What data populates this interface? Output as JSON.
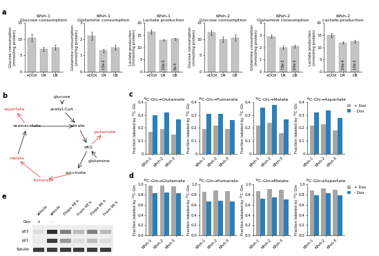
{
  "panel_labels": [
    "a",
    "b",
    "c",
    "d",
    "e"
  ],
  "chart_data": [
    {
      "type": "bar",
      "title": "KPsh-1\nGlucose consumption",
      "ylabel": "Glucose consumption\n(mmol/mg protein)",
      "categories": [
        "+DOX",
        "D4",
        "D8"
      ],
      "values": [
        10.5,
        7.0,
        7.5
      ],
      "errors": [
        1.2,
        0.6,
        0.7
      ],
      "annotations": [
        null,
        null,
        null
      ],
      "color": "#c4c4c4",
      "ylim": [
        0,
        15
      ],
      "yticks": [
        0,
        5,
        10,
        15
      ]
    },
    {
      "type": "bar",
      "title": "KPsh-1\nGlutamine consumption",
      "ylabel": "Glutamine consumption\n(mmol/mg protein)",
      "categories": [
        "+DOX",
        "D4",
        "D8"
      ],
      "values": [
        2.2,
        1.3,
        1.5
      ],
      "errors": [
        0.25,
        0.1,
        0.15
      ],
      "annotations": [
        null,
        "1.5e-2",
        null
      ],
      "color": "#c4c4c4",
      "ylim": [
        0,
        3
      ],
      "yticks": [
        0,
        1,
        2,
        3
      ]
    },
    {
      "type": "bar",
      "title": "KPsh-1\nLactate production",
      "ylabel": "Lactate production\n(mmol/mg protein)",
      "categories": [
        "+DOX",
        "D4",
        "D8"
      ],
      "values": [
        16.5,
        13.0,
        13.5
      ],
      "errors": [
        0.8,
        0.4,
        0.5
      ],
      "annotations": [
        null,
        "2.0e-5",
        "6e-4"
      ],
      "color": "#c4c4c4",
      "ylim": [
        0,
        20
      ],
      "yticks": [
        0,
        5,
        10,
        15,
        20
      ]
    },
    {
      "type": "bar",
      "title": "KPsh-2\nGlucose consumption",
      "ylabel": "Glucose consumption\n(mmol/mg protein)",
      "categories": [
        "+DOX",
        "D4",
        "D8"
      ],
      "values": [
        12.0,
        10.0,
        10.5
      ],
      "errors": [
        0.8,
        0.9,
        1.0
      ],
      "annotations": [
        null,
        null,
        null
      ],
      "color": "#c4c4c4",
      "ylim": [
        0,
        15
      ],
      "yticks": [
        0,
        5,
        10,
        15
      ]
    },
    {
      "type": "bar",
      "title": "KPsh-2\nGlutamine consumption",
      "ylabel": "Glutamine consumption\n(mmol/mg protein)",
      "categories": [
        "+DOX",
        "D4",
        "D8"
      ],
      "values": [
        2.9,
        2.0,
        2.1
      ],
      "errors": [
        0.15,
        0.15,
        0.1
      ],
      "annotations": [
        null,
        "7.8e-5",
        "8.4e-5"
      ],
      "color": "#c4c4c4",
      "ylim": [
        0,
        4
      ],
      "yticks": [
        0,
        1,
        2,
        3,
        4
      ]
    },
    {
      "type": "bar",
      "title": "KPsh-2\nLactate production",
      "ylabel": "Lactate production\n(mmol/mg protein)",
      "categories": [
        "+DOX",
        "D4",
        "D8"
      ],
      "values": [
        15.0,
        12.0,
        12.5
      ],
      "errors": [
        0.9,
        0.5,
        0.5
      ],
      "annotations": [
        null,
        "3.4e-4",
        "1.0e-2"
      ],
      "color": "#c4c4c4",
      "ylim": [
        0,
        20
      ],
      "yticks": [
        0,
        5,
        10,
        15,
        20
      ]
    },
    {
      "type": "bar",
      "title": "¹³C-Glc→Glutamate",
      "ylabel": "Fraction labeled by ¹³C-Glc",
      "categories": [
        "KPsh-1",
        "KPsh-2",
        "KPsh-3"
      ],
      "series": [
        {
          "name": "+ Dox",
          "color": "#a6a6a6",
          "values": [
            0.17,
            0.19,
            0.15
          ]
        },
        {
          "name": "- Dox",
          "color": "#2c7fb8",
          "values": [
            0.3,
            0.32,
            0.27
          ]
        }
      ],
      "ylim": [
        0,
        0.4
      ],
      "yticks": [
        0,
        0.1,
        0.2,
        0.3,
        0.4
      ]
    },
    {
      "type": "bar",
      "title": "¹³C-Glc→Fumarate",
      "ylabel": "Fraction labeled by ¹³C-Glc",
      "categories": [
        "KPsh-1",
        "KPsh-2",
        "KPsh-3"
      ],
      "series": [
        {
          "name": "+ Dox",
          "color": "#a6a6a6",
          "values": [
            0.19,
            0.22,
            0.19
          ]
        },
        {
          "name": "- Dox",
          "color": "#2c7fb8",
          "values": [
            0.31,
            0.31,
            0.26
          ]
        }
      ],
      "ylim": [
        0,
        0.4
      ],
      "yticks": [
        0,
        0.1,
        0.2,
        0.3,
        0.4
      ]
    },
    {
      "type": "bar",
      "title": "¹³C-Glc→Malate",
      "ylabel": "Fraction labeled by ¹³C-Glc",
      "categories": [
        "KPsh-1",
        "KPsh-2",
        "KPsh-3"
      ],
      "series": [
        {
          "name": "+ Dox",
          "color": "#a6a6a6",
          "values": [
            0.22,
            0.24,
            0.16
          ]
        },
        {
          "name": "- Dox",
          "color": "#2c7fb8",
          "values": [
            0.36,
            0.38,
            0.27
          ]
        }
      ],
      "ylim": [
        0,
        0.4
      ],
      "yticks": [
        0,
        0.1,
        0.2,
        0.3,
        0.4
      ]
    },
    {
      "type": "bar",
      "title": "¹³C-Glc→Aspartate",
      "ylabel": "Fraction labeled by ¹³C-Glc",
      "categories": [
        "KPsh-1",
        "KPsh-2",
        "KPsh-3"
      ],
      "series": [
        {
          "name": "+ Dox",
          "color": "#a6a6a6",
          "values": [
            0.22,
            0.23,
            0.18
          ]
        },
        {
          "name": "- Dox",
          "color": "#2c7fb8",
          "values": [
            0.32,
            0.34,
            0.28
          ]
        }
      ],
      "ylim": [
        0,
        0.4
      ],
      "yticks": [
        0,
        0.1,
        0.2,
        0.3,
        0.4
      ],
      "legend": "upper left"
    },
    {
      "type": "bar",
      "title": "¹³C-Gln→Glutamate",
      "ylabel": "Fraction labeled by ¹³C-Gln",
      "categories": [
        "KPsh-1",
        "KPsh-2",
        "KPsh-3"
      ],
      "series": [
        {
          "name": "+ Dox",
          "color": "#a6a6a6",
          "values": [
            0.97,
            0.98,
            0.96
          ]
        },
        {
          "name": "- Dox",
          "color": "#2c7fb8",
          "values": [
            0.83,
            0.84,
            0.82
          ]
        }
      ],
      "ylim": [
        0,
        1.0
      ],
      "yticks": [
        {
          "value": 0,
          "label": "0.0"
        },
        0.2,
        0.4,
        0.6,
        0.8,
        {
          "value": 1.0,
          "label": "1.0"
        }
      ]
    },
    {
      "type": "bar",
      "title": "¹³C-Gln→Fumarate",
      "ylabel": "Fraction labeled by ¹³C-Gln",
      "categories": [
        "KPsh-1",
        "KPsh-2",
        "KPsh-3"
      ],
      "series": [
        {
          "name": "+ Dox",
          "color": "#a6a6a6",
          "values": [
            0.85,
            0.88,
            0.87
          ]
        },
        {
          "name": "- Dox",
          "color": "#2c7fb8",
          "values": [
            0.66,
            0.68,
            0.67
          ]
        }
      ],
      "ylim": [
        0,
        1.0
      ],
      "yticks": [
        {
          "value": 0,
          "label": "0.0"
        },
        0.2,
        0.4,
        0.6,
        0.8,
        {
          "value": 1.0,
          "label": "1.0"
        }
      ]
    },
    {
      "type": "bar",
      "title": "¹³C-Gln→Malate",
      "ylabel": "Fraction labeled by ¹³C-Gln",
      "categories": [
        "KPsh-1",
        "KPsh-2",
        "KPsh-3"
      ],
      "series": [
        {
          "name": "+ Dox",
          "color": "#a6a6a6",
          "values": [
            0.87,
            0.91,
            0.9
          ]
        },
        {
          "name": "- Dox",
          "color": "#2c7fb8",
          "values": [
            0.72,
            0.74,
            0.71
          ]
        }
      ],
      "ylim": [
        0,
        1.0
      ],
      "yticks": [
        {
          "value": 0,
          "label": "0.0"
        },
        0.2,
        0.4,
        0.6,
        0.8,
        {
          "value": 1.0,
          "label": "1.0"
        }
      ]
    },
    {
      "type": "bar",
      "title": "¹³C-Gln→Aspartate",
      "ylabel": "Fraction labeled by ¹³C-Gln",
      "categories": [
        "KPsh-1",
        "KPsh-2",
        "KPsh-3"
      ],
      "series": [
        {
          "name": "+ Dox",
          "color": "#a6a6a6",
          "values": [
            0.88,
            0.92,
            0.9
          ]
        },
        {
          "name": "- Dox",
          "color": "#2c7fb8",
          "values": [
            0.78,
            0.82,
            0.79
          ]
        }
      ],
      "ylim": [
        0,
        1.0
      ],
      "yticks": [
        {
          "value": 0,
          "label": "0.0"
        },
        0.2,
        0.4,
        0.6,
        0.8,
        {
          "value": 1.0,
          "label": "1.0"
        }
      ],
      "legend": "upper left"
    }
  ],
  "diagram": {
    "nodes": [
      {
        "label": "glucose",
        "color": "black"
      },
      {
        "label": "acetyl-CoA",
        "color": "black"
      },
      {
        "label": "oxaloacetate",
        "color": "black"
      },
      {
        "label": "citrate",
        "color": "black"
      },
      {
        "label": "aspartate",
        "color": "#d62728"
      },
      {
        "label": "αKG",
        "color": "black"
      },
      {
        "label": "glutamate",
        "color": "#d62728"
      },
      {
        "label": "glutamine",
        "color": "black"
      },
      {
        "label": "succinate",
        "color": "black"
      },
      {
        "label": "fumarate",
        "color": "#d62728"
      },
      {
        "label": "malate",
        "color": "#d62728"
      }
    ],
    "edges": [
      [
        0,
        1
      ],
      [
        1,
        3
      ],
      [
        2,
        3
      ],
      [
        3,
        5
      ],
      [
        5,
        8
      ],
      [
        8,
        9
      ],
      [
        9,
        10
      ],
      [
        10,
        2
      ],
      [
        2,
        4
      ],
      [
        7,
        5
      ],
      [
        5,
        6
      ]
    ]
  },
  "blot": {
    "row_header": "Dox:",
    "lanes": [
      "Vehicle",
      "Vehicle",
      "Etopo 48 h",
      "Fram 48 h",
      "Etopo 96 h",
      "Fram 96 h"
    ],
    "dox": [
      "+",
      "-",
      null,
      null,
      null,
      null
    ],
    "rows": [
      {
        "label": "p53",
        "intensity": [
          0.15,
          0.9,
          0.55,
          0.3,
          0.55,
          0.3
        ]
      },
      {
        "label": "p21",
        "intensity": [
          0.1,
          0.85,
          0.45,
          0.15,
          0.3,
          0.15
        ]
      },
      {
        "label": "Tubulin",
        "intensity": [
          0.85,
          0.85,
          0.85,
          0.85,
          0.85,
          0.85
        ]
      }
    ]
  }
}
